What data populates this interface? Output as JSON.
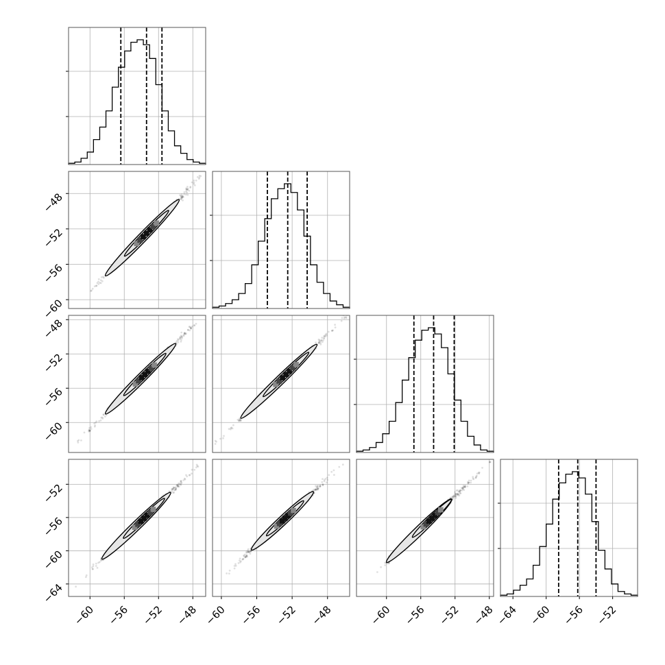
{
  "chart_data": {
    "type": "corner",
    "grid": true,
    "parameters": [
      {
        "hist_range": [
          -62.5,
          -46.5
        ],
        "hist_values": [
          0.01,
          0.02,
          0.05,
          0.1,
          0.2,
          0.3,
          0.43,
          0.62,
          0.78,
          0.91,
          0.98,
          1.0,
          0.96,
          0.85,
          0.64,
          0.43,
          0.27,
          0.15,
          0.09,
          0.04,
          0.02,
          0.01
        ],
        "quantiles": [
          -56.4,
          -53.4,
          -51.6
        ],
        "ticks": [
          -60,
          -56,
          -52,
          -48
        ],
        "tick_labels": [
          "−60",
          "−56",
          "−52",
          "−48"
        ]
      },
      {
        "hist_range": [
          -61.0,
          -45.5
        ],
        "hist_values": [
          0.01,
          0.02,
          0.04,
          0.07,
          0.12,
          0.2,
          0.35,
          0.54,
          0.72,
          0.88,
          0.96,
          1.0,
          0.93,
          0.79,
          0.58,
          0.35,
          0.21,
          0.12,
          0.06,
          0.03,
          0.01
        ],
        "quantiles": [
          -54.8,
          -52.5,
          -50.3
        ],
        "ticks": [
          -60,
          -56,
          -52,
          -48
        ],
        "tick_labels": [
          "−60",
          "−56",
          "−52",
          "−48"
        ]
      },
      {
        "hist_range": [
          -63.5,
          -47.5
        ],
        "hist_values": [
          0.01,
          0.02,
          0.04,
          0.08,
          0.15,
          0.25,
          0.4,
          0.58,
          0.76,
          0.9,
          0.98,
          1.0,
          0.95,
          0.84,
          0.63,
          0.42,
          0.25,
          0.13,
          0.06,
          0.02,
          0.01
        ],
        "quantiles": [
          -56.8,
          -54.5,
          -52.1
        ],
        "ticks": [
          -60,
          -56,
          -52,
          -48
        ],
        "tick_labels": [
          "−60",
          "−56",
          "−52",
          "−48"
        ]
      },
      {
        "hist_range": [
          -65.5,
          -49.0
        ],
        "hist_values": [
          0.01,
          0.02,
          0.05,
          0.09,
          0.14,
          0.25,
          0.4,
          0.58,
          0.78,
          0.91,
          0.98,
          1.0,
          0.95,
          0.82,
          0.6,
          0.37,
          0.22,
          0.1,
          0.04,
          0.02,
          0.01
        ],
        "quantiles": [
          -58.5,
          -56.2,
          -54.0
        ],
        "ticks": [
          -64,
          -60,
          -56,
          -52
        ],
        "tick_labels": [
          "−64",
          "−60",
          "−56",
          "−52"
        ]
      }
    ],
    "pairs": [
      {
        "row": 1,
        "col": 0,
        "center": [
          -53.4,
          -52.5
        ],
        "contour_x": [
          -58.2,
          -49.6
        ]
      },
      {
        "row": 2,
        "col": 0,
        "center": [
          -53.6,
          -54.4
        ],
        "contour_x": [
          -58.2,
          -50.0
        ]
      },
      {
        "row": 2,
        "col": 1,
        "center": [
          -52.7,
          -54.4
        ],
        "contour_x": [
          -57.8,
          -49.2
        ]
      },
      {
        "row": 3,
        "col": 0,
        "center": [
          -53.7,
          -56.1
        ],
        "contour_x": [
          -58.6,
          -50.6
        ]
      },
      {
        "row": 3,
        "col": 1,
        "center": [
          -52.8,
          -56.1
        ],
        "contour_x": [
          -56.6,
          -49.6
        ]
      },
      {
        "row": 3,
        "col": 2,
        "center": [
          -54.7,
          -56.1
        ],
        "contour_x": [
          -60.0,
          -52.4
        ]
      }
    ]
  }
}
